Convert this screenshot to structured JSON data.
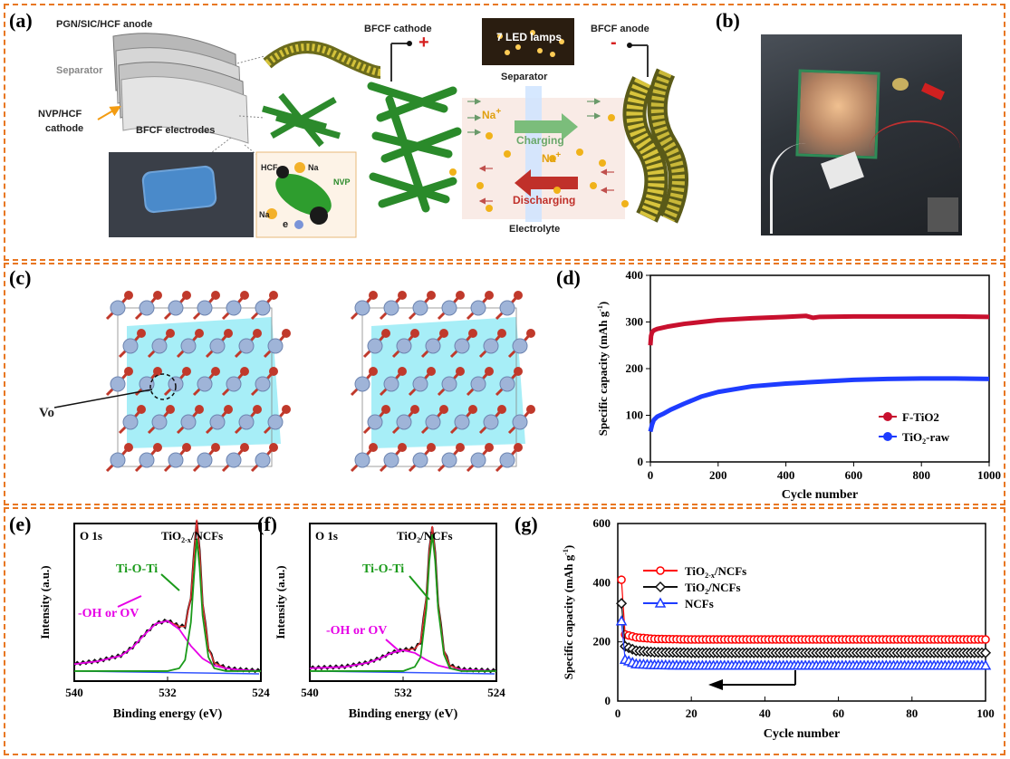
{
  "panels": {
    "a": {
      "label": "(a)",
      "texts": {
        "anode_top": "PGN/SIC/HCF anode",
        "separator_left": "Separator",
        "nvp_cathode": "NVP/HCF",
        "nvp_cathode2": "cathode",
        "bfcf_electrodes": "BFCF  electrodes",
        "bfcf_cathode": "BFCF  cathode",
        "plus": "+",
        "minus": "-",
        "led": "7 LED lamps",
        "separator_mid": "Separator",
        "bfcf_anode": "BFCF  anode",
        "na_ion": "Na",
        "charging": "Charging",
        "discharging": "Discharging",
        "electrolyte": "Electrolyte",
        "hcf": "HCF",
        "na_small": "Na",
        "nvp": "NVP",
        "electron": "e"
      }
    },
    "b": {
      "label": "(b)"
    },
    "c": {
      "label": "(c)",
      "vo": "Vo"
    },
    "d": {
      "label": "(d)"
    },
    "e": {
      "label": "(e)",
      "o1s": "O 1s",
      "sample": "TiO2-x/NCFs",
      "peak1": "Ti-O-Ti",
      "peak2": "-OH or OV"
    },
    "f": {
      "label": "(f)",
      "o1s": "O 1s",
      "sample": "TiO2/NCFs",
      "peak1": "Ti-O-Ti",
      "peak2": "-OH or OV"
    },
    "g": {
      "label": "(g)"
    }
  },
  "colors": {
    "dash_border": "#e87722",
    "red_series": "#c8102e",
    "blue_series": "#1e3cff",
    "green_fit": "#1a9a1a",
    "magenta_fit": "#e600e6",
    "blue_baseline": "#3355ff"
  },
  "chart_data": [
    {
      "id": "d",
      "type": "line",
      "xlabel": "Cycle number",
      "ylabel": "Specific capacity (mAh g-1)",
      "xlim": [
        0,
        1000
      ],
      "ylim": [
        0,
        400
      ],
      "xticks": [
        0,
        200,
        400,
        600,
        800,
        1000
      ],
      "yticks": [
        0,
        100,
        200,
        300,
        400
      ],
      "legend_position": "bottom-right",
      "series": [
        {
          "name": "F-TiO2",
          "color": "#c8102e",
          "x": [
            0,
            2,
            5,
            10,
            20,
            50,
            100,
            150,
            200,
            300,
            400,
            460,
            480,
            500,
            600,
            700,
            800,
            900,
            1000
          ],
          "y": [
            250,
            270,
            278,
            282,
            285,
            290,
            296,
            300,
            304,
            308,
            311,
            313,
            309,
            311,
            312,
            312,
            312,
            312,
            311
          ]
        },
        {
          "name": "TiO2-raw",
          "color": "#1e3cff",
          "x": [
            0,
            5,
            10,
            20,
            40,
            60,
            100,
            150,
            200,
            300,
            400,
            500,
            600,
            700,
            800,
            900,
            1000
          ],
          "y": [
            65,
            80,
            90,
            97,
            104,
            112,
            125,
            140,
            150,
            162,
            168,
            172,
            176,
            178,
            179,
            179,
            178
          ]
        }
      ]
    },
    {
      "id": "e",
      "type": "line",
      "xlabel": "Binding energy (eV)",
      "ylabel": "Intensity   (a.u.)",
      "xlim": [
        540,
        524
      ],
      "xticks": [
        540,
        532,
        524
      ],
      "series": [
        {
          "name": "-OH or OV",
          "color": "#e600e6",
          "x": [
            540,
            538,
            536,
            535,
            534,
            533,
            532,
            531,
            530,
            529,
            528,
            527,
            526,
            524
          ],
          "y": [
            0.05,
            0.07,
            0.11,
            0.17,
            0.26,
            0.34,
            0.36,
            0.3,
            0.18,
            0.09,
            0.04,
            0.02,
            0.01,
            0.0
          ]
        },
        {
          "name": "Ti-O-Ti",
          "color": "#1a9a1a",
          "x": [
            540,
            532,
            531,
            530.5,
            530,
            529.8,
            529.5,
            529.2,
            529,
            528.5,
            528,
            527,
            524
          ],
          "y": [
            0.0,
            0.0,
            0.02,
            0.08,
            0.35,
            0.6,
            0.95,
            0.7,
            0.4,
            0.1,
            0.02,
            0.0,
            0.0
          ]
        }
      ]
    },
    {
      "id": "f",
      "type": "line",
      "xlabel": "Binding energy (eV)",
      "ylabel": "Intensity   (a.u.)",
      "xlim": [
        540,
        524
      ],
      "xticks": [
        540,
        532,
        524
      ],
      "series": [
        {
          "name": "-OH or OV",
          "color": "#e600e6",
          "x": [
            540,
            537,
            535,
            534,
            533,
            532,
            531,
            530,
            529,
            528,
            527,
            524
          ],
          "y": [
            0.02,
            0.03,
            0.06,
            0.09,
            0.13,
            0.15,
            0.13,
            0.08,
            0.04,
            0.02,
            0.01,
            0.0
          ]
        },
        {
          "name": "Ti-O-Ti",
          "color": "#1a9a1a",
          "x": [
            540,
            532,
            531,
            530.5,
            530,
            529.8,
            529.5,
            529.2,
            529,
            528.5,
            528,
            527,
            524
          ],
          "y": [
            0.0,
            0.0,
            0.03,
            0.1,
            0.45,
            0.75,
            0.98,
            0.75,
            0.45,
            0.12,
            0.02,
            0.0,
            0.0
          ]
        }
      ]
    },
    {
      "id": "g",
      "type": "line",
      "xlabel": "Cycle number",
      "ylabel": "Specific capacity (mAh g-1)",
      "xlim": [
        0,
        100
      ],
      "ylim": [
        0,
        600
      ],
      "xticks": [
        0,
        20,
        40,
        60,
        80,
        100
      ],
      "yticks": [
        0,
        200,
        400,
        600
      ],
      "legend_position": "top-left",
      "series": [
        {
          "name": "TiO2-x/NCFs",
          "color": "#ff0000",
          "marker": "circle",
          "x": [
            1,
            2,
            5,
            10,
            20,
            30,
            40,
            50,
            60,
            70,
            80,
            90,
            100
          ],
          "y": [
            410,
            225,
            215,
            210,
            208,
            208,
            208,
            208,
            208,
            208,
            208,
            208,
            208
          ]
        },
        {
          "name": "TiO2/NCFs",
          "color": "#111111",
          "marker": "diamond",
          "x": [
            1,
            2,
            5,
            10,
            20,
            30,
            40,
            50,
            60,
            70,
            80,
            90,
            100
          ],
          "y": [
            330,
            185,
            170,
            165,
            163,
            163,
            163,
            163,
            163,
            163,
            163,
            163,
            163
          ]
        },
        {
          "name": "NCFs",
          "color": "#1e3cff",
          "marker": "triangle",
          "x": [
            1,
            2,
            5,
            10,
            20,
            30,
            40,
            50,
            60,
            70,
            80,
            90,
            100
          ],
          "y": [
            270,
            140,
            125,
            122,
            120,
            120,
            120,
            120,
            120,
            120,
            120,
            120,
            120
          ]
        }
      ]
    }
  ]
}
